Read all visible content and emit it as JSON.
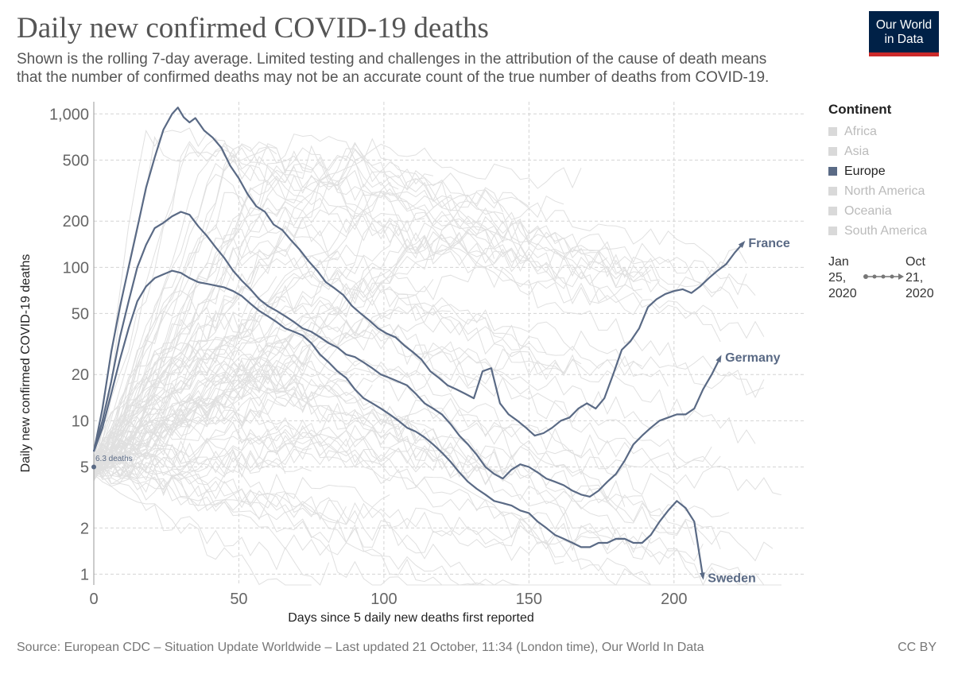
{
  "header": {
    "title": "Daily new confirmed COVID-19 deaths",
    "subtitle_line1": "Shown is the rolling 7-day average. Limited testing and challenges in the attribution of the cause of death means",
    "subtitle_line2": "that the number of confirmed deaths may not be an accurate count of the true number of deaths from COVID-19."
  },
  "logo": {
    "line1": "Our World",
    "line2": "in Data"
  },
  "legend": {
    "title": "Continent",
    "items": [
      {
        "label": "Africa",
        "active": false
      },
      {
        "label": "Asia",
        "active": false
      },
      {
        "label": "Europe",
        "active": true
      },
      {
        "label": "North America",
        "active": false
      },
      {
        "label": "Oceania",
        "active": false
      },
      {
        "label": "South America",
        "active": false
      }
    ]
  },
  "timeline": {
    "start_month": "Jan",
    "start_day": "25,",
    "start_year": "2020",
    "end_month": "Oct",
    "end_day": "21,",
    "end_year": "2020"
  },
  "footer": {
    "source": "Source: European CDC – Situation Update Worldwide – Last updated 21 October, 11:34 (London time), Our World In Data",
    "license": "CC BY"
  },
  "colors": {
    "highlight": "#5a6a85",
    "background_lines": "#e0e0e0",
    "grid": "#d4d4d4",
    "axis": "#999999",
    "logo_bg": "#002147",
    "logo_bar": "#cc2a2a",
    "legend_inactive": "#d9d9d9"
  },
  "chart_data": {
    "type": "line",
    "title": "Daily new confirmed COVID-19 deaths",
    "xlabel": "Days since 5 daily new deaths first reported",
    "ylabel": "Daily new confirmed COVID-19 deaths",
    "xlim": [
      0,
      245
    ],
    "ylim": [
      0.85,
      1200
    ],
    "yscale": "log",
    "x_ticks": [
      0,
      50,
      100,
      150,
      200
    ],
    "y_ticks": [
      1,
      2,
      5,
      10,
      20,
      50,
      100,
      200,
      500,
      1000
    ],
    "y_tick_labels": [
      "1",
      "2",
      "5",
      "10",
      "20",
      "50",
      "100",
      "200",
      "500",
      "1,000"
    ],
    "grid": true,
    "start_annotation": "6.3 deaths",
    "series": [
      {
        "name": "France",
        "highlighted": true,
        "label_pos": "end",
        "x": [
          0,
          3,
          6,
          9,
          12,
          15,
          18,
          21,
          24,
          27,
          29,
          31,
          33,
          35,
          38,
          41,
          44,
          47,
          50,
          53,
          56,
          59,
          62,
          65,
          68,
          71,
          74,
          77,
          80,
          83,
          86,
          89,
          92,
          95,
          98,
          101,
          104,
          107,
          110,
          113,
          116,
          119,
          122,
          125,
          128,
          131,
          134,
          137,
          140,
          143,
          146,
          149,
          152,
          155,
          158,
          161,
          164,
          167,
          170,
          173,
          176,
          179,
          182,
          185,
          188,
          191,
          194,
          197,
          200,
          203,
          206,
          209,
          212,
          215,
          218,
          221,
          224
        ],
        "y": [
          6.3,
          12,
          28,
          55,
          100,
          180,
          330,
          520,
          790,
          1000,
          1100,
          950,
          880,
          940,
          780,
          700,
          600,
          460,
          380,
          300,
          250,
          230,
          190,
          175,
          150,
          130,
          110,
          95,
          80,
          73,
          66,
          56,
          50,
          45,
          40,
          37,
          35,
          31,
          28,
          25,
          21,
          19,
          17,
          16,
          15,
          14,
          21,
          22,
          13,
          11,
          10,
          9,
          8,
          8.3,
          9,
          10,
          10.5,
          12,
          13,
          12,
          14,
          20,
          29,
          33,
          40,
          55,
          62,
          67,
          70,
          72,
          68,
          75,
          85,
          95,
          105,
          125,
          145
        ]
      },
      {
        "name": "Germany",
        "highlighted": true,
        "label_pos": "end",
        "x": [
          0,
          3,
          6,
          9,
          12,
          15,
          18,
          21,
          24,
          27,
          30,
          33,
          36,
          39,
          42,
          45,
          48,
          51,
          54,
          57,
          60,
          63,
          66,
          69,
          72,
          75,
          78,
          81,
          84,
          87,
          90,
          93,
          96,
          99,
          102,
          105,
          108,
          111,
          114,
          117,
          120,
          123,
          126,
          129,
          132,
          135,
          138,
          141,
          144,
          147,
          150,
          153,
          156,
          159,
          162,
          165,
          168,
          171,
          174,
          177,
          180,
          183,
          186,
          189,
          192,
          195,
          198,
          201,
          204,
          207,
          210,
          213,
          216
        ],
        "y": [
          6.3,
          10,
          18,
          35,
          60,
          100,
          140,
          180,
          195,
          215,
          230,
          220,
          185,
          160,
          135,
          115,
          95,
          82,
          72,
          62,
          56,
          52,
          48,
          44,
          40,
          38,
          35,
          32,
          30,
          27,
          26,
          24,
          22,
          20,
          19,
          18,
          17,
          15,
          13,
          12,
          11,
          9.5,
          8,
          7,
          6,
          5,
          4.5,
          4.2,
          4.8,
          5.2,
          5,
          4.6,
          4.2,
          4,
          3.8,
          3.5,
          3.3,
          3.2,
          3.5,
          4,
          4.5,
          5.5,
          7,
          8,
          9,
          10,
          10.5,
          11,
          11,
          12,
          16,
          20,
          26
        ]
      },
      {
        "name": "Sweden",
        "highlighted": true,
        "label_pos": "end",
        "x": [
          0,
          3,
          6,
          9,
          12,
          15,
          18,
          21,
          24,
          27,
          30,
          33,
          36,
          39,
          42,
          45,
          48,
          51,
          54,
          57,
          60,
          63,
          66,
          69,
          72,
          75,
          78,
          81,
          84,
          87,
          90,
          93,
          96,
          99,
          102,
          105,
          108,
          111,
          114,
          117,
          120,
          123,
          126,
          129,
          132,
          135,
          138,
          141,
          144,
          147,
          150,
          153,
          156,
          159,
          162,
          165,
          168,
          171,
          174,
          177,
          180,
          183,
          186,
          189,
          192,
          195,
          198,
          201,
          204,
          207,
          210
        ],
        "y": [
          6.3,
          9,
          15,
          25,
          40,
          60,
          75,
          85,
          90,
          95,
          92,
          85,
          80,
          78,
          76,
          74,
          70,
          65,
          58,
          52,
          48,
          44,
          40,
          38,
          36,
          32,
          27,
          24,
          21,
          19,
          16,
          14,
          13,
          12,
          11,
          10,
          9,
          8.5,
          7.8,
          7,
          6.2,
          5.4,
          4.6,
          4,
          3.6,
          3.3,
          3,
          2.9,
          2.8,
          2.6,
          2.5,
          2.2,
          2,
          1.8,
          1.7,
          1.6,
          1.5,
          1.5,
          1.6,
          1.6,
          1.7,
          1.7,
          1.6,
          1.6,
          1.8,
          2.2,
          2.6,
          3,
          2.7,
          2.2,
          0.95
        ]
      }
    ]
  }
}
